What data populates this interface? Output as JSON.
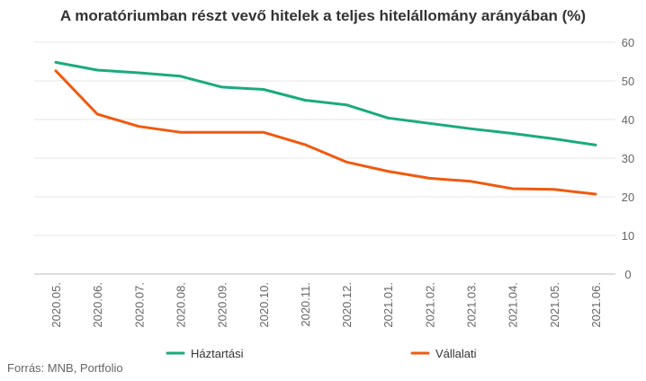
{
  "chart_data": {
    "type": "line",
    "title": "A moratóriumban részt vevő hitelek a teljes hitelállomány arányában (%)",
    "xlabel": "",
    "ylabel": "",
    "categories": [
      "2020.05.",
      "2020.06.",
      "2020.07.",
      "2020.08.",
      "2020.09.",
      "2020.10.",
      "2020.11.",
      "2020.12.",
      "2021.01.",
      "2021.02.",
      "2021.03.",
      "2021.04.",
      "2021.05.",
      "2021.06."
    ],
    "series": [
      {
        "name": "Háztartási",
        "color": "#1aaa7e",
        "values": [
          54.8,
          52.8,
          52.1,
          51.2,
          48.4,
          47.8,
          45.0,
          43.8,
          40.4,
          39.0,
          37.6,
          36.4,
          35.0,
          33.4
        ]
      },
      {
        "name": "Vállalati",
        "color": "#f05a0f",
        "values": [
          52.6,
          41.4,
          38.2,
          36.7,
          36.7,
          36.7,
          33.5,
          29.0,
          26.6,
          24.8,
          24.0,
          22.1,
          21.9,
          20.7
        ]
      }
    ],
    "ylim": [
      0,
      60
    ],
    "yticks": [
      0,
      10,
      20,
      30,
      40,
      50,
      60
    ],
    "y_axis_side": "right",
    "grid": true,
    "legend_position": "bottom"
  },
  "source": "Forrás: MNB, Portfolio"
}
